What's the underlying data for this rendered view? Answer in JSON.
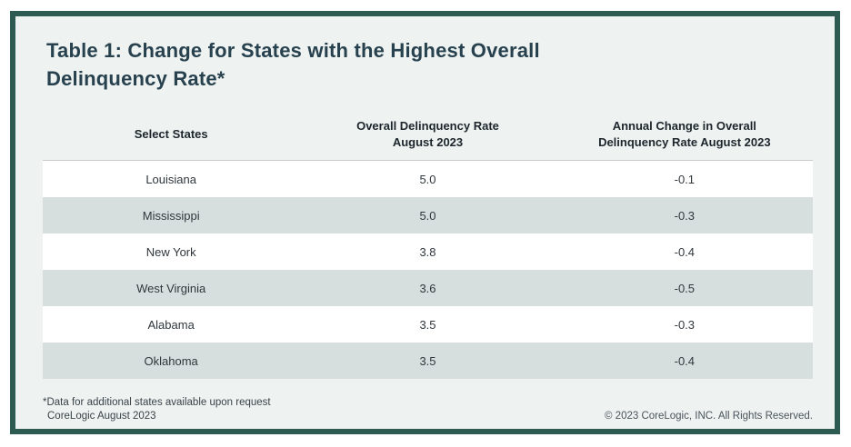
{
  "title": "Table 1: Change for States with the Highest Overall Delinquency Rate*",
  "table": {
    "headers": [
      {
        "line1": "Select States",
        "line2": ""
      },
      {
        "line1": "Overall Delinquency Rate",
        "line2": "August 2023"
      },
      {
        "line1": "Annual Change in Overall",
        "line2": "Delinquency Rate August 2023"
      }
    ],
    "rows": [
      {
        "state": "Louisiana",
        "rate": "5.0",
        "change": "-0.1"
      },
      {
        "state": "Mississippi",
        "rate": "5.0",
        "change": "-0.3"
      },
      {
        "state": "New York",
        "rate": "3.8",
        "change": "-0.4"
      },
      {
        "state": "West Virginia",
        "rate": "3.6",
        "change": "-0.5"
      },
      {
        "state": "Alabama",
        "rate": "3.5",
        "change": "-0.3"
      },
      {
        "state": "Oklahoma",
        "rate": "3.5",
        "change": "-0.4"
      }
    ]
  },
  "footnotes": {
    "line1": "*Data for additional states available upon request",
    "line2": "CoreLogic August 2023",
    "copyright": "© 2023 CoreLogic, INC. All Rights Reserved."
  },
  "colors": {
    "border_teal": "#2d5a51",
    "card_background": "#eef2f1",
    "row_stripe": "#d6dfdd",
    "title_text": "#27424e"
  },
  "chart_data": {
    "type": "table",
    "title": "Table 1: Change for States with the Highest Overall Delinquency Rate*",
    "columns": [
      "Select States",
      "Overall Delinquency Rate August 2023",
      "Annual Change in Overall Delinquency Rate August 2023"
    ],
    "rows": [
      [
        "Louisiana",
        5.0,
        -0.1
      ],
      [
        "Mississippi",
        5.0,
        -0.3
      ],
      [
        "New York",
        3.8,
        -0.4
      ],
      [
        "West Virginia",
        3.6,
        -0.5
      ],
      [
        "Alabama",
        3.5,
        -0.3
      ],
      [
        "Oklahoma",
        3.5,
        -0.4
      ]
    ]
  }
}
